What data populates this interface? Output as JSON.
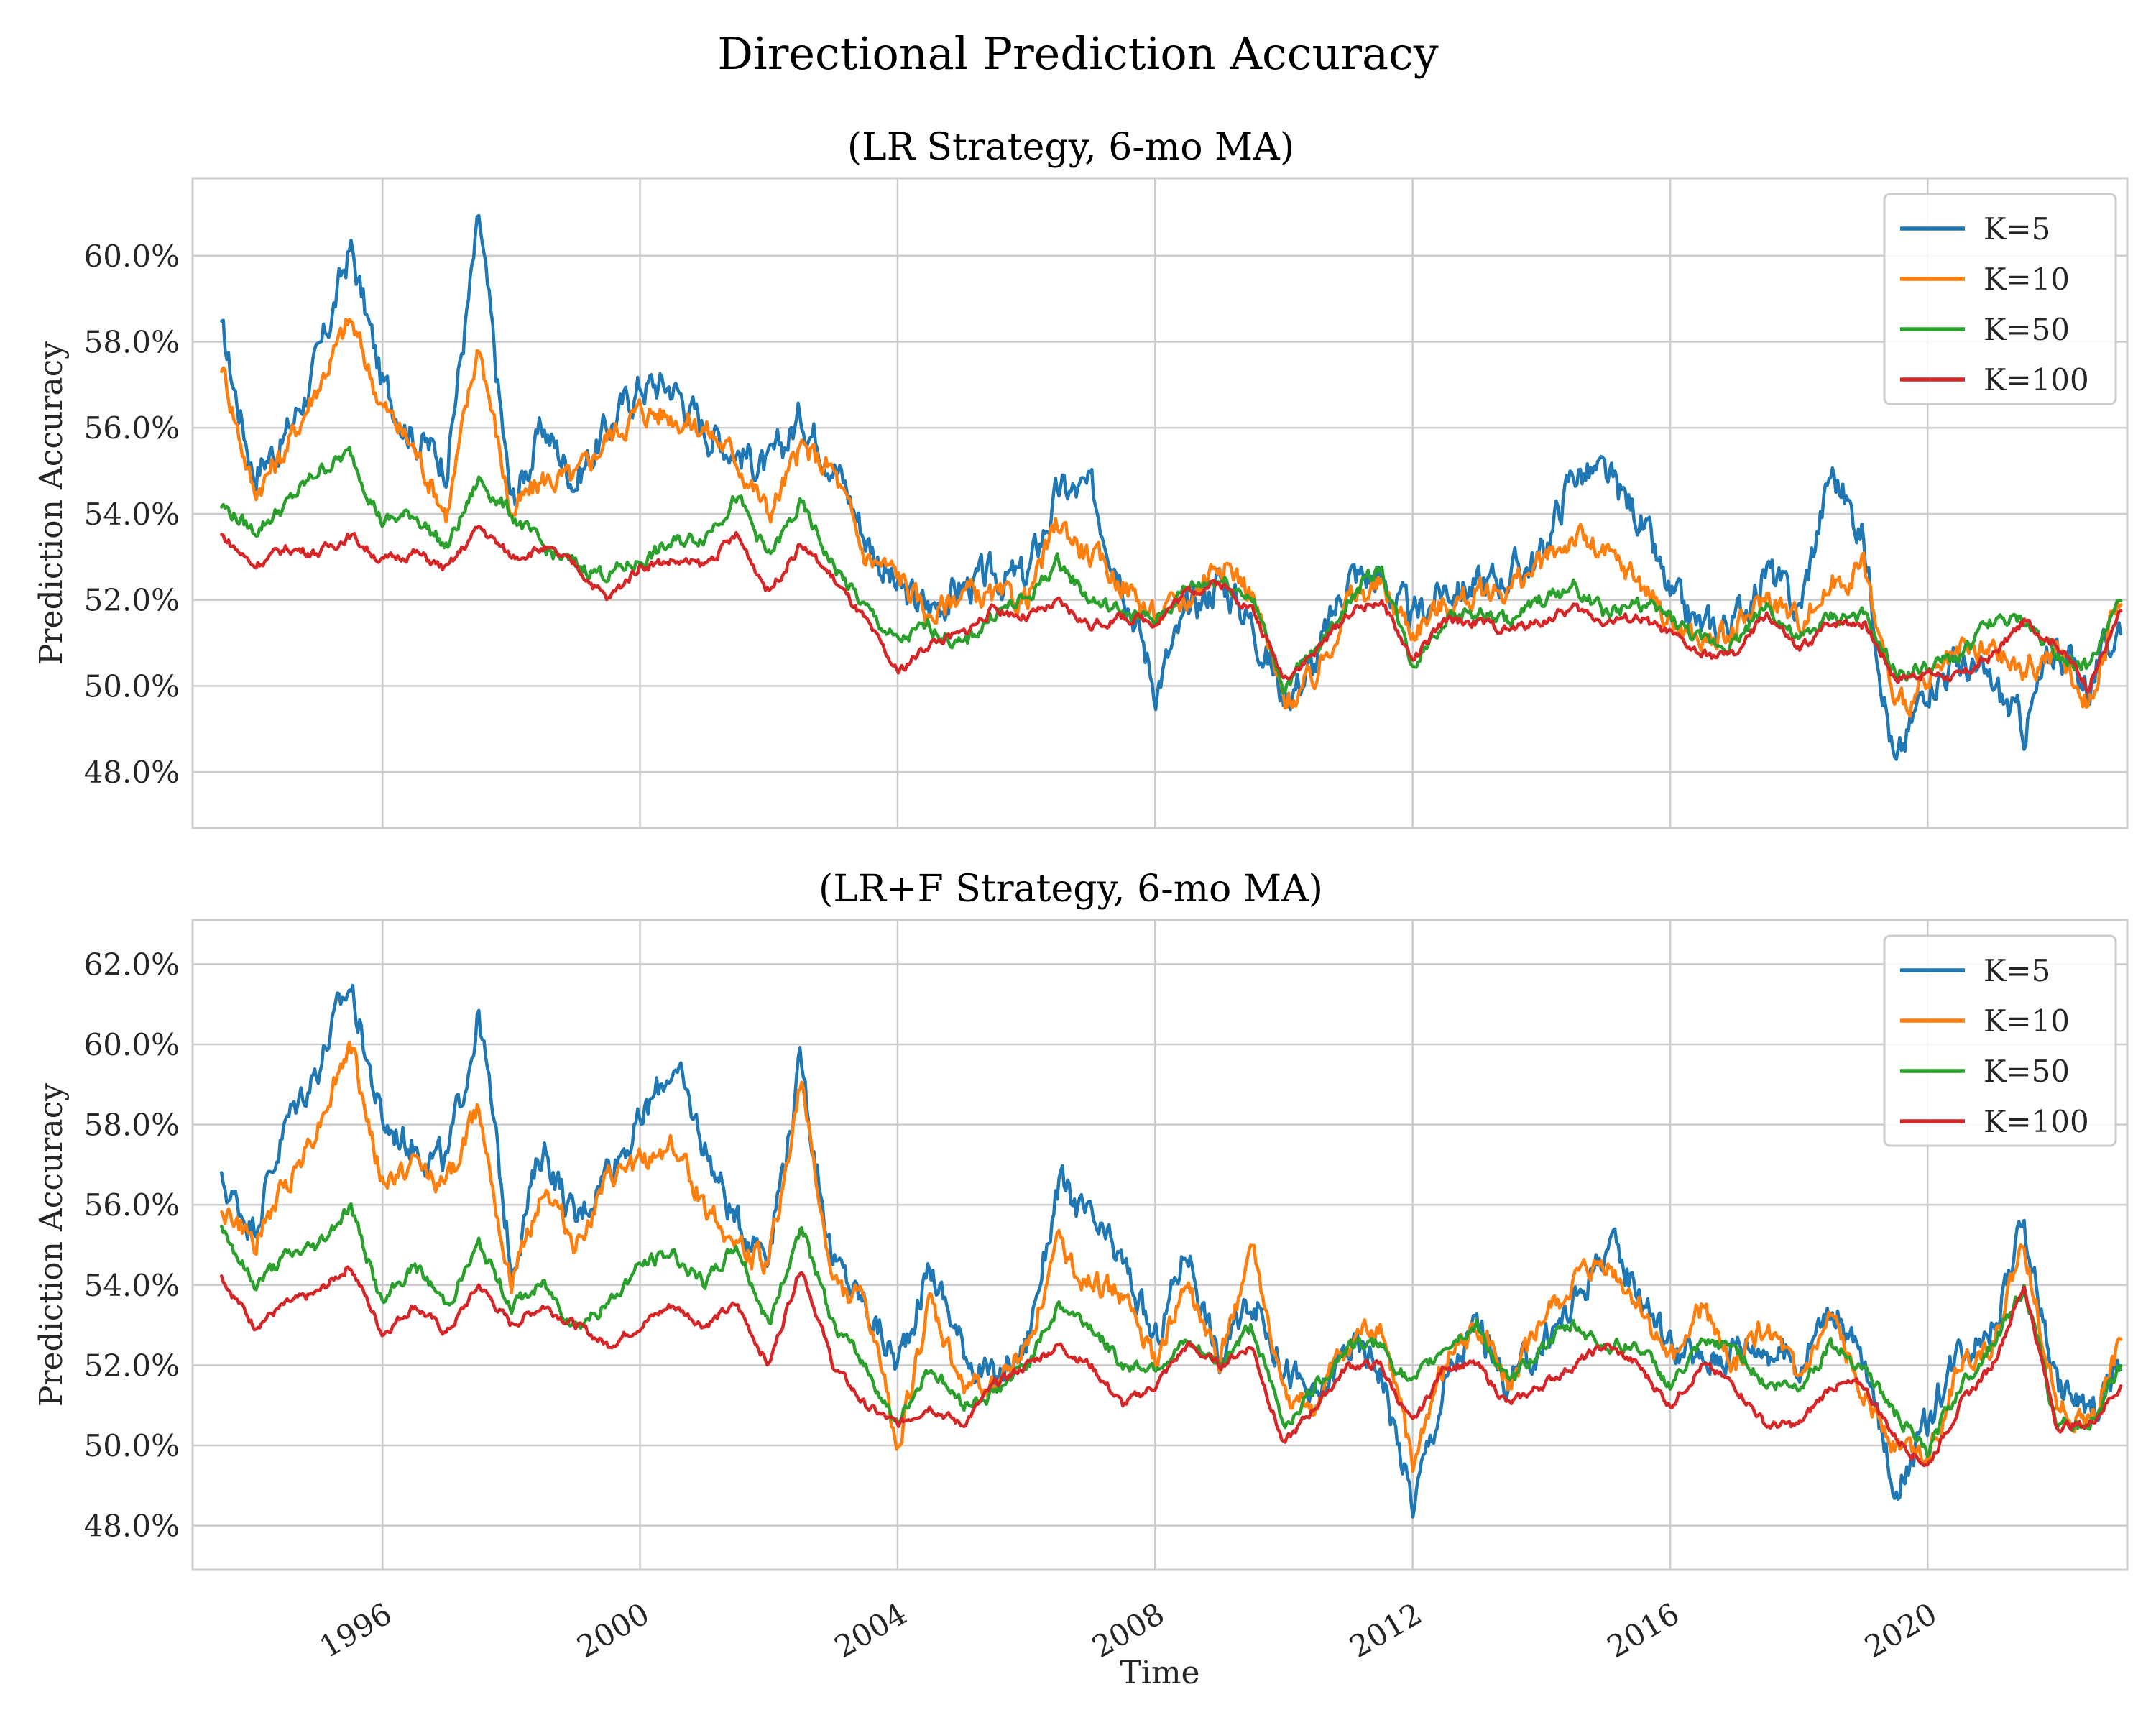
{
  "figure_title": "Directional Prediction Accuracy",
  "xlabel": "Time",
  "ylabel": "Prediction Accuracy",
  "x_ticks": [
    "1996",
    "2000",
    "2004",
    "2008",
    "2012",
    "2016",
    "2020"
  ],
  "colors": {
    "K=5": "#1f77b4",
    "K=10": "#ff7f0e",
    "K=50": "#2ca02c",
    "K=100": "#d62728",
    "grid": "#cccccc"
  },
  "chart_data": [
    {
      "type": "line",
      "title": "(LR Strategy, 6-mo MA)",
      "xlabel": "",
      "ylabel": "Prediction Accuracy",
      "xlim": [
        1993.05,
        2023.1
      ],
      "ylim": [
        46.7,
        61.8
      ],
      "y_ticks": [
        48,
        50,
        52,
        54,
        56,
        58,
        60
      ],
      "y_tick_labels": [
        "48.0%",
        "50.0%",
        "52.0%",
        "54.0%",
        "56.0%",
        "58.0%",
        "60.0%"
      ],
      "legend": "top-right",
      "grid": true,
      "x": [
        1993.5,
        1994,
        1994.5,
        1995,
        1995.5,
        1996,
        1996.5,
        1997,
        1997.5,
        1998,
        1998.5,
        1999,
        1999.5,
        2000,
        2000.5,
        2001,
        2001.5,
        2002,
        2002.5,
        2003,
        2003.5,
        2004,
        2004.5,
        2005,
        2005.5,
        2006,
        2006.5,
        2007,
        2007.5,
        2008,
        2008.5,
        2009,
        2009.5,
        2010,
        2010.5,
        2011,
        2011.5,
        2012,
        2012.5,
        2013,
        2013.5,
        2014,
        2014.5,
        2015,
        2015.5,
        2016,
        2016.5,
        2017,
        2017.5,
        2018,
        2018.5,
        2019,
        2019.5,
        2020,
        2020.5,
        2021,
        2021.5,
        2022,
        2022.5,
        2023
      ],
      "series": [
        {
          "name": "K=5",
          "values": [
            58.2,
            55.0,
            55.8,
            57.5,
            60.2,
            57.0,
            55.8,
            55.2,
            60.8,
            54.2,
            56.0,
            54.8,
            56.0,
            57.0,
            57.0,
            56.0,
            55.5,
            55.0,
            56.3,
            55.3,
            53.5,
            52.2,
            51.8,
            52.3,
            52.5,
            52.5,
            54.5,
            54.5,
            52.6,
            50.0,
            51.6,
            52.5,
            51.5,
            49.8,
            50.5,
            52.6,
            52.5,
            51.5,
            52.3,
            52.3,
            52.6,
            53.0,
            55.0,
            54.8,
            54.0,
            52.0,
            51.3,
            51.5,
            52.7,
            51.7,
            55.0,
            53.5,
            48.0,
            50.2,
            50.5,
            50.0,
            49.0,
            51.0,
            50.0,
            51.5
          ]
        },
        {
          "name": "K=10",
          "values": [
            57.5,
            54.5,
            55.5,
            57.0,
            58.5,
            56.5,
            55.5,
            54.0,
            58.0,
            54.0,
            54.8,
            54.8,
            55.8,
            56.4,
            56.3,
            56.0,
            55.3,
            54.0,
            55.5,
            55.0,
            53.0,
            52.6,
            51.6,
            52.2,
            52.0,
            52.0,
            53.8,
            53.0,
            52.4,
            51.6,
            52.0,
            53.0,
            52.2,
            49.6,
            50.2,
            52.0,
            52.3,
            51.3,
            51.9,
            52.1,
            52.3,
            52.8,
            53.5,
            53.0,
            52.5,
            51.5,
            51.0,
            51.2,
            52.1,
            51.5,
            52.3,
            52.8,
            49.5,
            50.0,
            50.7,
            50.8,
            50.3,
            50.8,
            49.6,
            52.2
          ]
        },
        {
          "name": "K=50",
          "values": [
            54.2,
            53.6,
            54.2,
            55.0,
            55.4,
            53.8,
            54.0,
            53.2,
            54.8,
            54.0,
            53.2,
            52.8,
            52.6,
            52.9,
            53.3,
            53.5,
            54.4,
            53.0,
            54.2,
            52.8,
            51.8,
            51.0,
            51.4,
            50.9,
            51.7,
            52.0,
            52.9,
            52.0,
            51.7,
            51.5,
            52.3,
            52.5,
            52.1,
            50.0,
            50.8,
            52.0,
            52.8,
            50.5,
            51.6,
            51.7,
            51.5,
            52.0,
            52.3,
            51.7,
            51.9,
            51.6,
            51.0,
            51.0,
            51.9,
            51.0,
            51.6,
            51.6,
            50.3,
            50.4,
            50.7,
            51.5,
            51.5,
            50.8,
            50.4,
            52.0
          ]
        },
        {
          "name": "K=100",
          "values": [
            53.5,
            52.8,
            53.2,
            53.1,
            53.5,
            52.9,
            53.1,
            52.7,
            53.7,
            53.0,
            53.2,
            52.8,
            52.0,
            52.8,
            52.9,
            52.8,
            53.5,
            52.2,
            53.3,
            52.5,
            51.5,
            50.3,
            51.0,
            51.2,
            51.8,
            51.6,
            51.9,
            51.4,
            51.6,
            51.5,
            52.2,
            52.4,
            51.8,
            50.2,
            50.8,
            51.7,
            52.0,
            50.6,
            51.5,
            51.5,
            51.3,
            51.5,
            51.8,
            51.5,
            51.6,
            51.2,
            50.7,
            50.7,
            51.7,
            50.8,
            51.5,
            51.5,
            50.2,
            50.3,
            50.2,
            50.7,
            51.5,
            51.0,
            50.0,
            51.7
          ]
        }
      ]
    },
    {
      "type": "line",
      "title": "(LR+F Strategy, 6-mo MA)",
      "xlabel": "Time",
      "ylabel": "Prediction Accuracy",
      "xlim": [
        1993.05,
        2023.1
      ],
      "ylim": [
        46.9,
        63.1
      ],
      "y_ticks": [
        48,
        50,
        52,
        54,
        56,
        58,
        60,
        62
      ],
      "y_tick_labels": [
        "48.0%",
        "50.0%",
        "52.0%",
        "54.0%",
        "56.0%",
        "58.0%",
        "60.0%",
        "62.0%"
      ],
      "legend": "top-right",
      "grid": true,
      "x": [
        1993.5,
        1994,
        1994.5,
        1995,
        1995.5,
        1996,
        1996.5,
        1997,
        1997.5,
        1998,
        1998.5,
        1999,
        1999.5,
        2000,
        2000.5,
        2001,
        2001.5,
        2002,
        2002.5,
        2003,
        2003.5,
        2004,
        2004.5,
        2005,
        2005.5,
        2006,
        2006.5,
        2007,
        2007.5,
        2008,
        2008.5,
        2009,
        2009.5,
        2010,
        2010.5,
        2011,
        2011.5,
        2012,
        2012.5,
        2013,
        2013.5,
        2014,
        2014.5,
        2015,
        2015.5,
        2016,
        2016.5,
        2017,
        2017.5,
        2018,
        2018.5,
        2019,
        2019.5,
        2020,
        2020.5,
        2021,
        2021.5,
        2022,
        2022.5,
        2023
      ],
      "series": [
        {
          "name": "K=5",
          "values": [
            56.5,
            55.5,
            58.0,
            59.5,
            61.5,
            58.0,
            57.5,
            57.0,
            60.8,
            54.5,
            57.5,
            55.5,
            57.0,
            58.0,
            59.5,
            57.5,
            55.5,
            55.0,
            59.5,
            54.5,
            53.5,
            52.0,
            54.5,
            52.5,
            51.5,
            52.5,
            56.5,
            55.5,
            54.5,
            52.5,
            55.0,
            52.0,
            53.8,
            52.0,
            51.0,
            52.5,
            52.0,
            48.5,
            51.5,
            53.0,
            51.5,
            52.5,
            53.5,
            55.0,
            54.0,
            52.5,
            52.0,
            52.5,
            52.5,
            52.0,
            53.5,
            52.0,
            49.0,
            50.5,
            52.5,
            53.0,
            55.5,
            51.5,
            50.8,
            52.0
          ]
        },
        {
          "name": "K=10",
          "values": [
            56.0,
            55.0,
            56.5,
            58.0,
            60.0,
            56.5,
            57.0,
            56.5,
            58.5,
            54.0,
            56.5,
            55.0,
            56.5,
            57.0,
            57.5,
            56.0,
            55.0,
            54.5,
            59.0,
            54.0,
            53.5,
            50.0,
            53.5,
            51.5,
            51.5,
            52.5,
            55.0,
            54.0,
            53.8,
            52.0,
            54.0,
            52.0,
            55.0,
            51.0,
            51.0,
            52.5,
            53.0,
            49.5,
            52.0,
            53.0,
            51.5,
            53.0,
            54.0,
            54.5,
            53.5,
            52.0,
            53.5,
            52.0,
            53.0,
            51.5,
            53.0,
            51.5,
            50.0,
            49.8,
            52.0,
            52.5,
            55.0,
            51.2,
            50.5,
            52.5
          ]
        },
        {
          "name": "K=50",
          "values": [
            55.5,
            54.0,
            54.7,
            55.0,
            56.0,
            53.5,
            54.5,
            53.5,
            55.0,
            53.5,
            54.0,
            53.0,
            53.5,
            54.5,
            54.8,
            54.0,
            55.0,
            53.0,
            55.5,
            53.0,
            52.0,
            50.5,
            52.0,
            51.0,
            51.3,
            52.0,
            53.5,
            53.0,
            52.0,
            52.0,
            52.5,
            52.0,
            53.0,
            50.5,
            51.5,
            52.5,
            52.5,
            51.5,
            52.5,
            53.0,
            51.5,
            52.5,
            53.0,
            52.5,
            52.5,
            51.5,
            52.5,
            52.5,
            51.5,
            51.5,
            52.5,
            52.0,
            50.8,
            49.8,
            51.5,
            52.5,
            54.0,
            50.5,
            50.5,
            52.0
          ]
        },
        {
          "name": "K=100",
          "values": [
            54.2,
            53.0,
            53.5,
            53.8,
            54.5,
            52.8,
            53.5,
            52.8,
            54.0,
            53.0,
            53.5,
            53.0,
            52.5,
            53.0,
            53.5,
            53.0,
            53.5,
            52.0,
            54.5,
            52.0,
            51.0,
            50.5,
            51.0,
            50.5,
            51.5,
            52.0,
            52.5,
            52.0,
            51.0,
            51.5,
            52.5,
            52.0,
            52.5,
            50.0,
            51.0,
            52.0,
            52.0,
            50.5,
            52.0,
            52.0,
            51.0,
            51.5,
            52.0,
            52.5,
            52.0,
            51.0,
            52.0,
            51.5,
            50.5,
            50.5,
            51.5,
            51.5,
            50.2,
            49.5,
            51.0,
            52.0,
            54.0,
            50.5,
            50.5,
            51.5
          ]
        }
      ]
    }
  ]
}
